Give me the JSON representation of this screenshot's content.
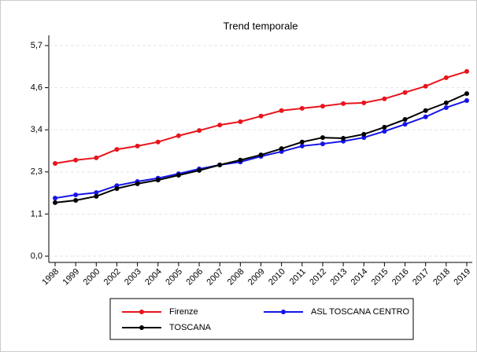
{
  "chart_data": {
    "type": "line",
    "title": "Trend temporale",
    "categories": [
      "1998",
      "1999",
      "2000",
      "2002",
      "2003",
      "2004",
      "2005",
      "2006",
      "2007",
      "2008",
      "2009",
      "2010",
      "2011",
      "2012",
      "2013",
      "2014",
      "2015",
      "2016",
      "2017",
      "2018",
      "2019"
    ],
    "series": [
      {
        "name": "Firenze",
        "color": "#e8141c",
        "values": [
          2.51,
          2.6,
          2.66,
          2.89,
          2.98,
          3.09,
          3.26,
          3.4,
          3.55,
          3.64,
          3.79,
          3.94,
          4.0,
          4.06,
          4.13,
          4.15,
          4.26,
          4.43,
          4.6,
          4.83,
          5.0
        ]
      },
      {
        "name": "ASL TOSCANA CENTRO",
        "color": "#1414e8",
        "values": [
          1.57,
          1.66,
          1.72,
          1.91,
          2.02,
          2.11,
          2.23,
          2.36,
          2.47,
          2.55,
          2.7,
          2.83,
          2.98,
          3.04,
          3.11,
          3.21,
          3.38,
          3.57,
          3.77,
          4.02,
          4.21
        ]
      },
      {
        "name": "TOSCANA",
        "color": "#000000",
        "values": [
          1.45,
          1.51,
          1.62,
          1.83,
          1.96,
          2.06,
          2.19,
          2.32,
          2.47,
          2.6,
          2.74,
          2.91,
          3.09,
          3.21,
          3.19,
          3.3,
          3.49,
          3.7,
          3.94,
          4.15,
          4.4
        ]
      }
    ],
    "ylim": [
      0,
      5.7
    ],
    "yticks": [
      {
        "value": 0,
        "label": "0,0"
      },
      {
        "value": 1.14,
        "label": "1,1"
      },
      {
        "value": 2.28,
        "label": "2,3"
      },
      {
        "value": 3.42,
        "label": "3,4"
      },
      {
        "value": 4.56,
        "label": "4,6"
      },
      {
        "value": 5.7,
        "label": "5,7"
      }
    ],
    "grid": true
  }
}
